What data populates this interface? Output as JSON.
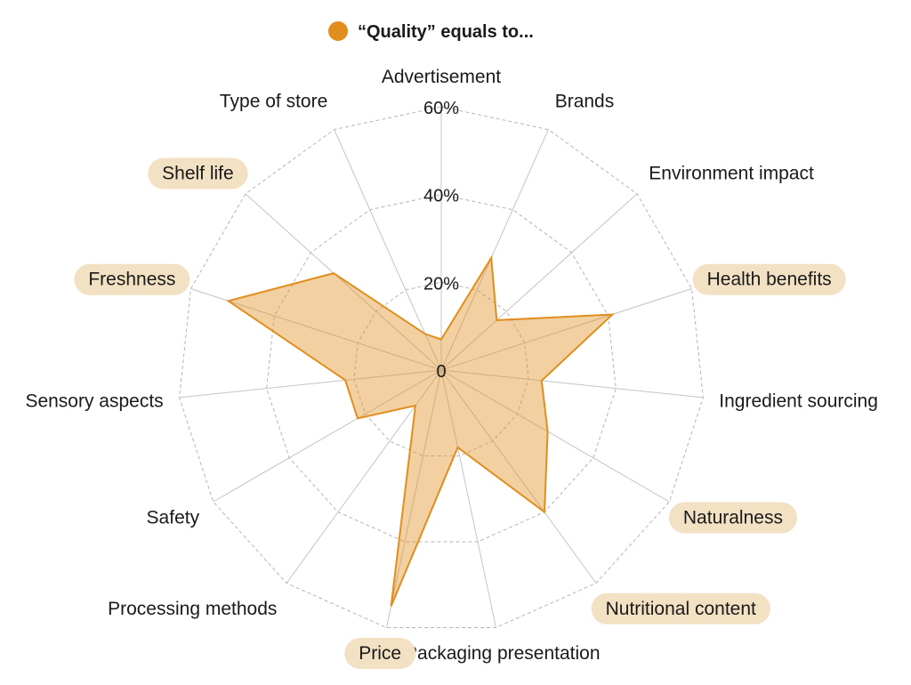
{
  "chart_data": {
    "type": "radar",
    "legend": {
      "label": "“Quality” equals to...",
      "color": "#E08E1E",
      "position": "top-center"
    },
    "grid": true,
    "rlim": [
      0,
      60
    ],
    "ticks": [
      "0",
      "20%",
      "40%",
      "60%"
    ],
    "categories": [
      "Advertisement",
      "Brands",
      "Environment impact",
      "Health benefits",
      "Ingredient sourcing",
      "Naturalness",
      "Nutritional content",
      "Packaging presentation",
      "Price",
      "Processing methods",
      "Safety",
      "Sensory aspects",
      "Freshness",
      "Shelf life",
      "Type of store"
    ],
    "highlighted": [
      "Health benefits",
      "Naturalness",
      "Nutritional content",
      "Price",
      "Freshness",
      "Shelf life"
    ],
    "highlight_color": "#F3E1C4",
    "series": [
      {
        "name": "“Quality” equals to...",
        "color": "#E08E1E",
        "values": [
          7,
          28,
          17,
          41,
          23,
          28,
          40,
          18,
          55,
          10,
          22,
          22,
          51,
          33,
          9
        ]
      }
    ]
  }
}
